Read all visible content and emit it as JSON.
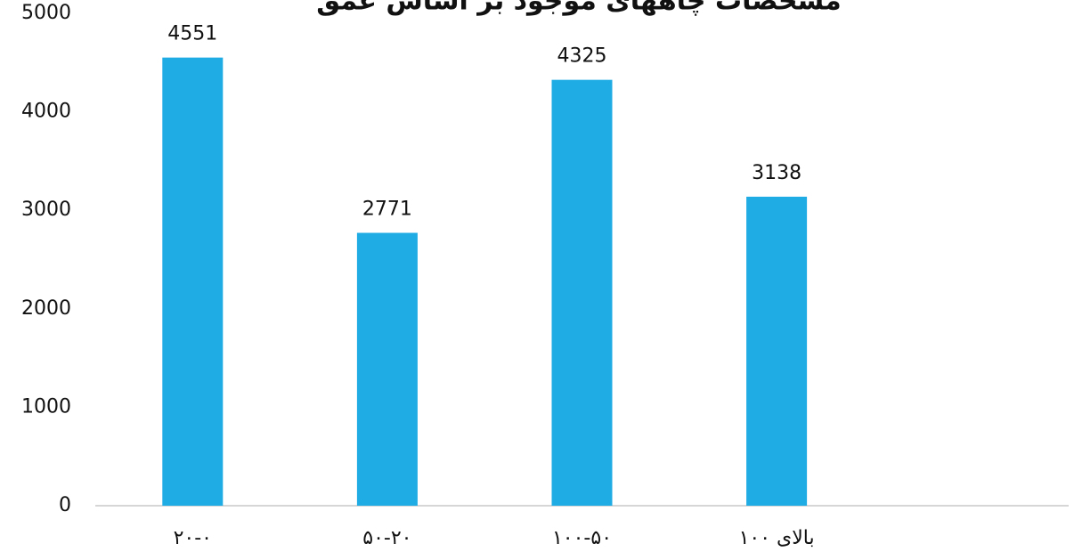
{
  "chart_data": {
    "type": "bar",
    "title": "مشخصات چاههای موجود بر اساس عمق",
    "categories": [
      "۲۰-۰",
      "۵۰-۲۰",
      "۱۰۰-۵۰",
      "بالای ۱۰۰",
      null
    ],
    "values": [
      4551,
      2771,
      4325,
      3138,
      null
    ],
    "color": "#1fabe3",
    "ylim": [
      0,
      5000
    ],
    "yticks": [
      0,
      1000,
      2000,
      3000,
      4000,
      5000
    ],
    "grid": false,
    "data_labels": true
  }
}
